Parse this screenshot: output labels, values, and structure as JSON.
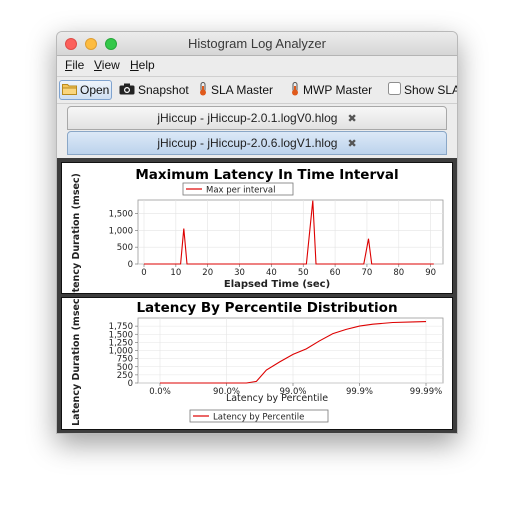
{
  "window": {
    "title": "Histogram Log Analyzer"
  },
  "menu": {
    "items": [
      "File",
      "View",
      "Help"
    ]
  },
  "toolbar": {
    "open_label": "Open",
    "snapshot_label": "Snapshot",
    "sla_master_label": "SLA Master",
    "mwp_master_label": "MWP Master",
    "show_sla_label": "Show SLA"
  },
  "tabs": [
    {
      "label": "jHiccup - jHiccup-2.0.1.logV0.hlog",
      "close": "✖",
      "selected": false
    },
    {
      "label": "jHiccup - jHiccup-2.0.6.logV1.hlog",
      "close": "✖",
      "selected": true
    }
  ],
  "colors": {
    "series": "#dd0000",
    "tab_selected": "#c7dbf0",
    "content_bg": "#3d3d3d"
  },
  "chart_data": [
    {
      "type": "line",
      "title": "Maximum Latency In Time Interval",
      "xlabel": "Elapsed Time (sec)",
      "ylabel": "Latency Duration (msec)",
      "xlim": [
        0,
        92
      ],
      "ylim": [
        0,
        1900
      ],
      "xticks": [
        "0",
        "10",
        "20",
        "30",
        "40",
        "50",
        "60",
        "70",
        "80",
        "90"
      ],
      "yticks": [
        "0",
        "500",
        "1,000",
        "1,500"
      ],
      "legend": {
        "position": "top",
        "entries": [
          "Max per interval"
        ]
      },
      "series": [
        {
          "name": "Max per interval",
          "x": [
            0,
            11.5,
            12.5,
            13.5,
            51,
            53,
            54,
            69,
            70.5,
            71.5,
            91
          ],
          "y": [
            0,
            0,
            1050,
            0,
            0,
            1880,
            0,
            0,
            750,
            0,
            0
          ]
        }
      ]
    },
    {
      "type": "line",
      "title": "Latency By Percentile Distribution",
      "xlabel": "Latency by Percentile",
      "ylabel": "Latency Duration (msec)",
      "xscale": "percentile-log",
      "ylim": [
        0,
        2000
      ],
      "xticks": [
        "0.0%",
        "90.0%",
        "99.0%",
        "99.9%",
        "99.99%"
      ],
      "yticks": [
        "0",
        "250",
        "500",
        "750",
        "1,000",
        "1,250",
        "1,500",
        "1,750"
      ],
      "legend": {
        "position": "bottom",
        "entries": [
          "Latency by Percentile"
        ]
      },
      "series": [
        {
          "name": "Latency by Percentile",
          "x": [
            0,
            1.3,
            1.45,
            1.6,
            1.8,
            2.0,
            2.2,
            2.4,
            2.6,
            2.8,
            3.0,
            3.2,
            3.5,
            3.8,
            4.0
          ],
          "y": [
            0,
            0,
            50,
            400,
            650,
            880,
            1050,
            1300,
            1520,
            1650,
            1750,
            1810,
            1860,
            1880,
            1890
          ]
        }
      ]
    }
  ]
}
